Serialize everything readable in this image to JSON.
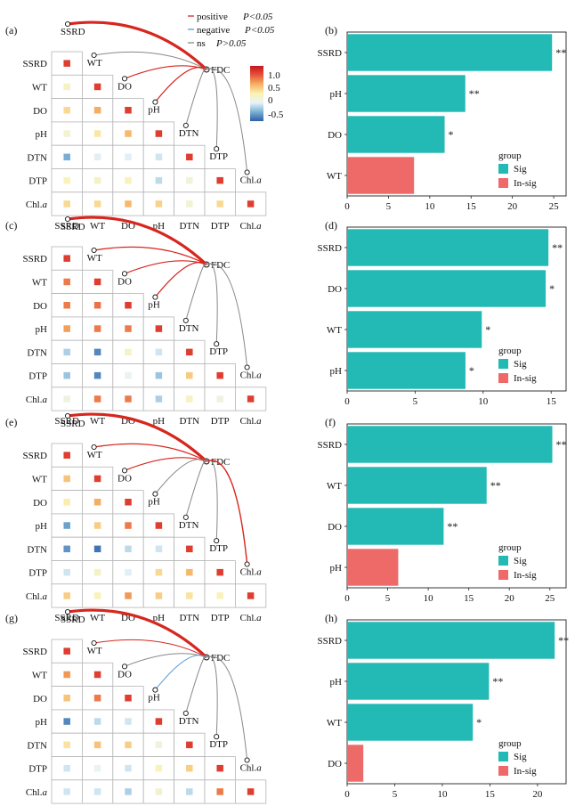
{
  "legend": {
    "items": [
      {
        "key": "positive",
        "label": "positive",
        "p": "P<0.05",
        "color": "#d7261e"
      },
      {
        "key": "negative",
        "label": "negative",
        "p": "P<0.05",
        "color": "#5b9bd5"
      },
      {
        "key": "ns",
        "label": "ns",
        "p": "P>0.05",
        "color": "#888888"
      }
    ]
  },
  "colorbar": {
    "ticks": [
      "1.0",
      "0.5",
      "0",
      "-0.5"
    ],
    "tick_values": [
      1.0,
      0.5,
      0.0,
      -0.5
    ],
    "min": -0.7,
    "max": 1.15,
    "stops": [
      "#2c5fa6",
      "#7ab0d4",
      "#e8f3f8",
      "#fbf2b4",
      "#f5b263",
      "#e8553a",
      "#c8141e"
    ]
  },
  "variables": [
    "SSRD",
    "WT",
    "DO",
    "pH",
    "DTN",
    "DTP",
    "Chl.a"
  ],
  "target_label": "FDC",
  "bar_legend": {
    "title": "group",
    "sig": "Sig",
    "insig": "In-sig",
    "sig_color": "#23b9b5",
    "insig_color": "#ee6a69"
  },
  "chart_data": [
    {
      "type": "heatmap",
      "panel": "(a)",
      "labels": [
        "SSRD",
        "WT",
        "DO",
        "pH",
        "DTN",
        "DTP",
        "Chl.a"
      ],
      "matrix": [
        [
          0.95
        ],
        [
          0.15,
          0.95
        ],
        [
          0.35,
          0.55,
          0.95
        ],
        [
          0.08,
          0.28,
          0.5,
          0.95
        ],
        [
          -0.4,
          -0.1,
          -0.1,
          -0.15,
          0.95
        ],
        [
          0.2,
          0.15,
          0.2,
          -0.2,
          0.05,
          0.95
        ],
        [
          0.35,
          0.35,
          0.5,
          0.38,
          0.08,
          0.35,
          0.95
        ]
      ],
      "links": [
        {
          "from": "SSRD",
          "effect": "positive",
          "width": 3.2
        },
        {
          "from": "WT",
          "effect": "ns",
          "width": 1
        },
        {
          "from": "DO",
          "effect": "positive",
          "width": 1.2
        },
        {
          "from": "pH",
          "effect": "positive",
          "width": 1.2
        },
        {
          "from": "DTN",
          "effect": "ns",
          "width": 1
        },
        {
          "from": "DTP",
          "effect": "ns",
          "width": 1
        },
        {
          "from": "Chl.a",
          "effect": "ns",
          "width": 1
        }
      ]
    },
    {
      "type": "bar",
      "panel": "(b)",
      "categories": [
        "SSRD",
        "pH",
        "DO",
        "WT"
      ],
      "values": [
        24.8,
        14.3,
        11.8,
        8.1
      ],
      "groups": [
        "Sig",
        "Sig",
        "Sig",
        "In-sig"
      ],
      "significance": [
        "**",
        "**",
        "*",
        ""
      ],
      "xlim": [
        0,
        26.5
      ],
      "xticks": [
        0,
        5,
        10,
        15,
        20,
        25
      ]
    },
    {
      "type": "heatmap",
      "panel": "(c)",
      "labels": [
        "SSRD",
        "WT",
        "DO",
        "pH",
        "DTN",
        "DTP",
        "Chl.a"
      ],
      "matrix": [
        [
          0.95
        ],
        [
          0.72,
          0.95
        ],
        [
          0.72,
          0.75,
          0.95
        ],
        [
          0.6,
          0.72,
          0.72,
          0.95
        ],
        [
          -0.25,
          -0.55,
          0.15,
          -0.15,
          0.95
        ],
        [
          -0.3,
          -0.55,
          -0.05,
          -0.3,
          0.42,
          0.95
        ],
        [
          0.02,
          0.72,
          0.72,
          -0.25,
          0.15,
          0.02,
          0.95
        ]
      ],
      "links": [
        {
          "from": "SSRD",
          "effect": "positive",
          "width": 3.2
        },
        {
          "from": "WT",
          "effect": "positive",
          "width": 1.2
        },
        {
          "from": "DO",
          "effect": "positive",
          "width": 1.2
        },
        {
          "from": "pH",
          "effect": "positive",
          "width": 1.2
        },
        {
          "from": "DTN",
          "effect": "ns",
          "width": 1
        },
        {
          "from": "DTP",
          "effect": "ns",
          "width": 1
        },
        {
          "from": "Chl.a",
          "effect": "ns",
          "width": 1
        }
      ]
    },
    {
      "type": "bar",
      "panel": "(d)",
      "categories": [
        "SSRD",
        "DO",
        "WT",
        "pH"
      ],
      "values": [
        14.8,
        14.6,
        9.9,
        8.7
      ],
      "groups": [
        "Sig",
        "Sig",
        "Sig",
        "Sig"
      ],
      "significance": [
        "**",
        "*",
        "*",
        "*"
      ],
      "xlim": [
        0,
        16.1
      ],
      "xticks": [
        0,
        5,
        10,
        15
      ]
    },
    {
      "type": "heatmap",
      "panel": "(e)",
      "labels": [
        "SSRD",
        "WT",
        "DO",
        "pH",
        "DTN",
        "DTP",
        "Chl.a"
      ],
      "matrix": [
        [
          0.95
        ],
        [
          0.45,
          0.95
        ],
        [
          0.25,
          0.55,
          0.95
        ],
        [
          -0.45,
          0.4,
          0.72,
          0.95
        ],
        [
          -0.5,
          -0.62,
          -0.2,
          -0.15,
          0.95
        ],
        [
          -0.15,
          0.15,
          -0.1,
          0.35,
          0.5,
          0.95
        ],
        [
          0.4,
          0.2,
          0.62,
          0.4,
          0.3,
          0.2,
          0.95
        ]
      ],
      "links": [
        {
          "from": "SSRD",
          "effect": "positive",
          "width": 3.2
        },
        {
          "from": "WT",
          "effect": "positive",
          "width": 1.2
        },
        {
          "from": "DO",
          "effect": "positive",
          "width": 1.2
        },
        {
          "from": "pH",
          "effect": "ns",
          "width": 1
        },
        {
          "from": "DTN",
          "effect": "ns",
          "width": 1
        },
        {
          "from": "DTP",
          "effect": "ns",
          "width": 1
        },
        {
          "from": "Chl.a",
          "effect": "positive",
          "width": 1.4
        }
      ]
    },
    {
      "type": "bar",
      "panel": "(f)",
      "categories": [
        "SSRD",
        "WT",
        "DO",
        "pH"
      ],
      "values": [
        25.3,
        17.2,
        11.9,
        6.3
      ],
      "groups": [
        "Sig",
        "Sig",
        "Sig",
        "In-sig"
      ],
      "significance": [
        "**",
        "**",
        "**",
        ""
      ],
      "xlim": [
        0,
        27
      ],
      "xticks": [
        0,
        5,
        10,
        15,
        20,
        25
      ]
    },
    {
      "type": "heatmap",
      "panel": "(g)",
      "labels": [
        "SSRD",
        "WT",
        "DO",
        "pH",
        "DTN",
        "DTP",
        "Chl.a"
      ],
      "matrix": [
        [
          0.95
        ],
        [
          0.62,
          0.95
        ],
        [
          0.45,
          0.72,
          0.95
        ],
        [
          -0.55,
          -0.2,
          -0.15,
          0.95
        ],
        [
          0.3,
          0.45,
          0.4,
          0.05,
          0.95
        ],
        [
          -0.15,
          -0.05,
          -0.15,
          0.2,
          0.4,
          0.95
        ],
        [
          -0.15,
          -0.15,
          -0.25,
          0.1,
          -0.2,
          0.72,
          0.95
        ]
      ],
      "links": [
        {
          "from": "SSRD",
          "effect": "positive",
          "width": 3.2
        },
        {
          "from": "WT",
          "effect": "positive",
          "width": 1
        },
        {
          "from": "DO",
          "effect": "ns",
          "width": 1
        },
        {
          "from": "pH",
          "effect": "negative",
          "width": 1
        },
        {
          "from": "DTN",
          "effect": "ns",
          "width": 1
        },
        {
          "from": "DTP",
          "effect": "ns",
          "width": 1
        },
        {
          "from": "Chl.a",
          "effect": "ns",
          "width": 1
        }
      ]
    },
    {
      "type": "bar",
      "panel": "(h)",
      "categories": [
        "SSRD",
        "pH",
        "WT",
        "DO"
      ],
      "values": [
        21.8,
        14.9,
        13.2,
        1.7
      ],
      "groups": [
        "Sig",
        "Sig",
        "Sig",
        "In-sig"
      ],
      "significance": [
        "**",
        "**",
        "*",
        ""
      ],
      "xlim": [
        0,
        23
      ],
      "xticks": [
        0,
        5,
        10,
        15,
        20
      ]
    }
  ]
}
